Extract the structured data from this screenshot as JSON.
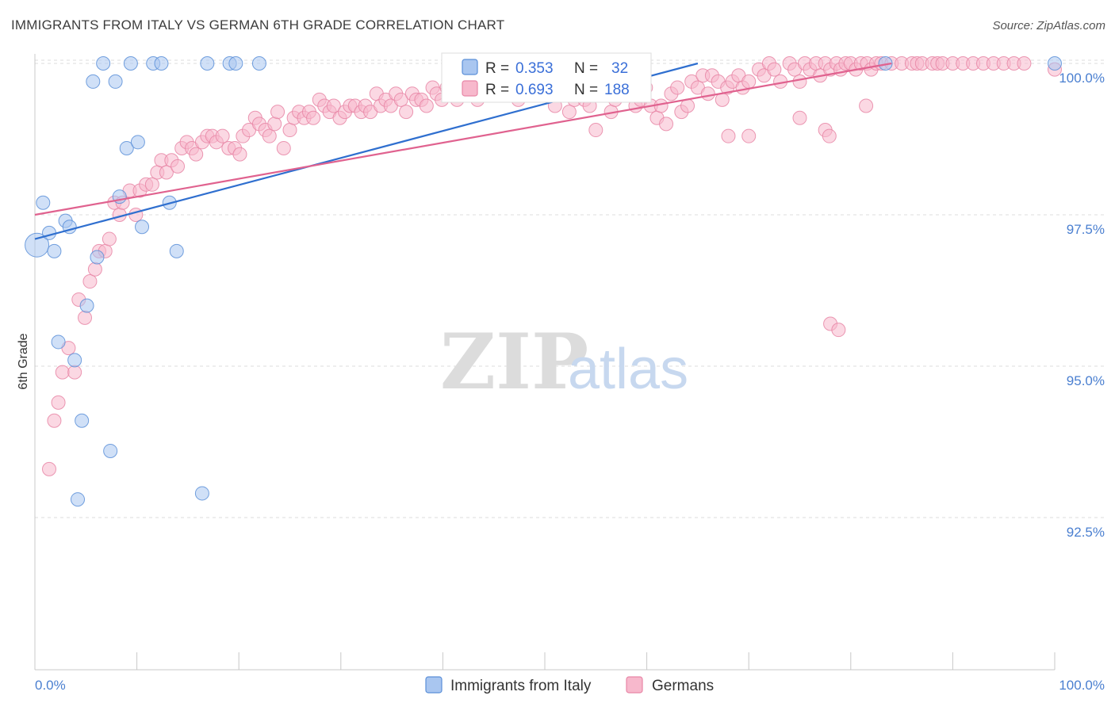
{
  "header": {
    "title": "IMMIGRANTS FROM ITALY VS GERMAN 6TH GRADE CORRELATION CHART",
    "source": "Source: ZipAtlas.com"
  },
  "watermark": {
    "zip": "ZIP",
    "atlas": "atlas"
  },
  "colors": {
    "italy_fill": "#a9c6f0",
    "italy_stroke": "#5b8fd8",
    "italy_line": "#2f6fcf",
    "german_fill": "#f7b8cc",
    "german_stroke": "#e886a6",
    "german_line": "#e0628f",
    "grid": "#dedede",
    "tick_label": "#4a7fd0"
  },
  "legend": {
    "rows": [
      {
        "r_label": "R =",
        "r_value": "0.353",
        "n_label": "N =",
        "n_value": "32"
      },
      {
        "r_label": "R =",
        "r_value": "0.693",
        "n_label": "N =",
        "n_value": "188"
      }
    ]
  },
  "chart_data": {
    "type": "scatter",
    "title": "IMMIGRANTS FROM ITALY VS GERMAN 6TH GRADE CORRELATION CHART",
    "xlabel": "",
    "ylabel": "6th Grade",
    "xlim": [
      0,
      100
    ],
    "ylim": [
      90.0,
      100.4
    ],
    "x_tick_labels": [
      "0.0%",
      "100.0%"
    ],
    "y_ticks": [
      92.5,
      95.0,
      97.5,
      100.0
    ],
    "y_tick_labels": [
      "92.5%",
      "95.0%",
      "97.5%",
      "100.0%"
    ],
    "grid": true,
    "legend_position": "top-center",
    "series": [
      {
        "name": "Immigrants from Italy",
        "r": 0.353,
        "n": 32,
        "trend": [
          [
            0,
            97.1
          ],
          [
            65,
            100.0
          ]
        ],
        "points": [
          [
            0.2,
            97.0
          ],
          [
            0.8,
            97.7
          ],
          [
            1.4,
            97.2
          ],
          [
            1.9,
            96.9
          ],
          [
            2.3,
            95.4
          ],
          [
            3.0,
            97.4
          ],
          [
            3.4,
            97.3
          ],
          [
            3.9,
            95.1
          ],
          [
            4.2,
            92.8
          ],
          [
            4.6,
            94.1
          ],
          [
            5.1,
            96.0
          ],
          [
            5.7,
            99.7
          ],
          [
            6.1,
            96.8
          ],
          [
            6.7,
            100.0
          ],
          [
            7.4,
            93.6
          ],
          [
            7.9,
            99.7
          ],
          [
            8.3,
            97.8
          ],
          [
            9.0,
            98.6
          ],
          [
            9.4,
            100.0
          ],
          [
            10.1,
            98.7
          ],
          [
            10.5,
            97.3
          ],
          [
            11.6,
            100.0
          ],
          [
            12.4,
            100.0
          ],
          [
            13.2,
            97.7
          ],
          [
            13.9,
            96.9
          ],
          [
            16.4,
            92.9
          ],
          [
            16.9,
            100.0
          ],
          [
            19.1,
            100.0
          ],
          [
            19.7,
            100.0
          ],
          [
            22.0,
            100.0
          ],
          [
            83.4,
            100.0
          ],
          [
            100.0,
            100.0
          ]
        ]
      },
      {
        "name": "Germans",
        "r": 0.693,
        "n": 188,
        "trend": [
          [
            0,
            97.5
          ],
          [
            84,
            100.0
          ]
        ],
        "points": [
          [
            1.4,
            93.3
          ],
          [
            1.9,
            94.1
          ],
          [
            2.3,
            94.4
          ],
          [
            2.7,
            94.9
          ],
          [
            3.3,
            95.3
          ],
          [
            3.9,
            94.9
          ],
          [
            4.3,
            96.1
          ],
          [
            4.9,
            95.8
          ],
          [
            5.4,
            96.4
          ],
          [
            5.9,
            96.6
          ],
          [
            6.3,
            96.9
          ],
          [
            6.9,
            96.9
          ],
          [
            7.3,
            97.1
          ],
          [
            7.8,
            97.7
          ],
          [
            8.3,
            97.5
          ],
          [
            8.6,
            97.7
          ],
          [
            9.3,
            97.9
          ],
          [
            9.9,
            97.5
          ],
          [
            10.3,
            97.9
          ],
          [
            10.9,
            98.0
          ],
          [
            11.5,
            98.0
          ],
          [
            12.0,
            98.2
          ],
          [
            12.4,
            98.4
          ],
          [
            12.9,
            98.2
          ],
          [
            13.4,
            98.4
          ],
          [
            14.0,
            98.3
          ],
          [
            14.4,
            98.6
          ],
          [
            14.9,
            98.7
          ],
          [
            15.4,
            98.6
          ],
          [
            15.8,
            98.5
          ],
          [
            16.4,
            98.7
          ],
          [
            16.9,
            98.8
          ],
          [
            17.4,
            98.8
          ],
          [
            17.8,
            98.7
          ],
          [
            18.4,
            98.8
          ],
          [
            19.0,
            98.6
          ],
          [
            19.6,
            98.6
          ],
          [
            20.1,
            98.5
          ],
          [
            20.4,
            98.8
          ],
          [
            21.0,
            98.9
          ],
          [
            21.6,
            99.1
          ],
          [
            22.0,
            99.0
          ],
          [
            22.6,
            98.9
          ],
          [
            23.0,
            98.8
          ],
          [
            23.5,
            99.0
          ],
          [
            23.8,
            99.2
          ],
          [
            24.4,
            98.6
          ],
          [
            25.0,
            98.9
          ],
          [
            25.4,
            99.1
          ],
          [
            25.9,
            99.2
          ],
          [
            26.4,
            99.1
          ],
          [
            26.9,
            99.2
          ],
          [
            27.3,
            99.1
          ],
          [
            27.9,
            99.4
          ],
          [
            28.4,
            99.3
          ],
          [
            28.9,
            99.2
          ],
          [
            29.3,
            99.3
          ],
          [
            29.9,
            99.1
          ],
          [
            30.4,
            99.2
          ],
          [
            30.9,
            99.3
          ],
          [
            31.4,
            99.3
          ],
          [
            32.0,
            99.2
          ],
          [
            32.4,
            99.3
          ],
          [
            32.9,
            99.2
          ],
          [
            33.5,
            99.5
          ],
          [
            33.9,
            99.3
          ],
          [
            34.4,
            99.4
          ],
          [
            34.9,
            99.3
          ],
          [
            35.4,
            99.5
          ],
          [
            35.9,
            99.4
          ],
          [
            36.4,
            99.2
          ],
          [
            37.0,
            99.5
          ],
          [
            37.4,
            99.4
          ],
          [
            37.9,
            99.4
          ],
          [
            38.4,
            99.3
          ],
          [
            39.0,
            99.6
          ],
          [
            39.4,
            99.5
          ],
          [
            39.9,
            99.4
          ],
          [
            40.4,
            99.6
          ],
          [
            40.9,
            99.5
          ],
          [
            41.4,
            99.4
          ],
          [
            42.0,
            99.7
          ],
          [
            42.5,
            99.5
          ],
          [
            42.9,
            99.6
          ],
          [
            43.4,
            99.4
          ],
          [
            43.9,
            99.6
          ],
          [
            44.4,
            99.7
          ],
          [
            44.9,
            99.5
          ],
          [
            45.4,
            99.7
          ],
          [
            45.9,
            99.6
          ],
          [
            46.4,
            99.7
          ],
          [
            46.9,
            99.5
          ],
          [
            47.4,
            99.4
          ],
          [
            47.9,
            99.6
          ],
          [
            48.4,
            99.7
          ],
          [
            48.9,
            99.6
          ],
          [
            49.4,
            99.5
          ],
          [
            49.9,
            99.7
          ],
          [
            50.4,
            99.6
          ],
          [
            51.0,
            99.3
          ],
          [
            51.4,
            99.5
          ],
          [
            51.9,
            99.6
          ],
          [
            52.4,
            99.2
          ],
          [
            52.9,
            99.4
          ],
          [
            53.4,
            99.7
          ],
          [
            53.9,
            99.4
          ],
          [
            54.4,
            99.3
          ],
          [
            54.9,
            99.6
          ],
          [
            55.4,
            99.7
          ],
          [
            55.9,
            99.5
          ],
          [
            56.5,
            99.2
          ],
          [
            56.9,
            99.4
          ],
          [
            57.4,
            99.6
          ],
          [
            57.9,
            99.7
          ],
          [
            58.4,
            99.5
          ],
          [
            58.9,
            99.3
          ],
          [
            59.4,
            99.4
          ],
          [
            59.9,
            99.6
          ],
          [
            60.4,
            99.3
          ],
          [
            61.0,
            99.1
          ],
          [
            61.4,
            99.3
          ],
          [
            61.9,
            99.0
          ],
          [
            62.4,
            99.5
          ],
          [
            63.0,
            99.6
          ],
          [
            63.4,
            99.2
          ],
          [
            64.0,
            99.3
          ],
          [
            64.4,
            99.7
          ],
          [
            65.0,
            99.6
          ],
          [
            65.5,
            99.8
          ],
          [
            66.0,
            99.5
          ],
          [
            66.4,
            99.8
          ],
          [
            67.0,
            99.7
          ],
          [
            67.4,
            99.4
          ],
          [
            67.9,
            99.6
          ],
          [
            68.4,
            99.7
          ],
          [
            69.0,
            99.8
          ],
          [
            69.4,
            99.6
          ],
          [
            70.0,
            99.7
          ],
          [
            71.0,
            99.9
          ],
          [
            71.5,
            99.8
          ],
          [
            72.0,
            100.0
          ],
          [
            72.5,
            99.9
          ],
          [
            73.1,
            99.7
          ],
          [
            74.0,
            100.0
          ],
          [
            74.5,
            99.9
          ],
          [
            75.0,
            99.7
          ],
          [
            75.5,
            100.0
          ],
          [
            76.0,
            99.9
          ],
          [
            76.6,
            100.0
          ],
          [
            77.0,
            99.8
          ],
          [
            77.5,
            100.0
          ],
          [
            78.0,
            99.9
          ],
          [
            78.6,
            100.0
          ],
          [
            79.0,
            99.9
          ],
          [
            79.5,
            100.0
          ],
          [
            80.0,
            100.0
          ],
          [
            80.5,
            99.9
          ],
          [
            81.0,
            100.0
          ],
          [
            81.6,
            100.0
          ],
          [
            82.0,
            99.9
          ],
          [
            82.5,
            100.0
          ],
          [
            83.0,
            100.0
          ],
          [
            84.0,
            100.0
          ],
          [
            85.0,
            100.0
          ],
          [
            86.0,
            100.0
          ],
          [
            86.5,
            100.0
          ],
          [
            87.0,
            100.0
          ],
          [
            88.0,
            100.0
          ],
          [
            88.5,
            100.0
          ],
          [
            89.0,
            100.0
          ],
          [
            90.0,
            100.0
          ],
          [
            91.0,
            100.0
          ],
          [
            92.0,
            100.0
          ],
          [
            93.0,
            100.0
          ],
          [
            94.0,
            100.0
          ],
          [
            95.0,
            100.0
          ],
          [
            96.0,
            100.0
          ],
          [
            97.0,
            100.0
          ],
          [
            78.0,
            95.7
          ],
          [
            78.8,
            95.6
          ],
          [
            77.5,
            98.9
          ],
          [
            77.9,
            98.8
          ],
          [
            68.0,
            98.8
          ],
          [
            70.0,
            98.8
          ],
          [
            75.0,
            99.1
          ],
          [
            81.5,
            99.3
          ],
          [
            100.0,
            99.9
          ],
          [
            55.0,
            98.9
          ]
        ]
      }
    ]
  },
  "bottom_legend": {
    "items": [
      "Immigrants from Italy",
      "Germans"
    ]
  }
}
